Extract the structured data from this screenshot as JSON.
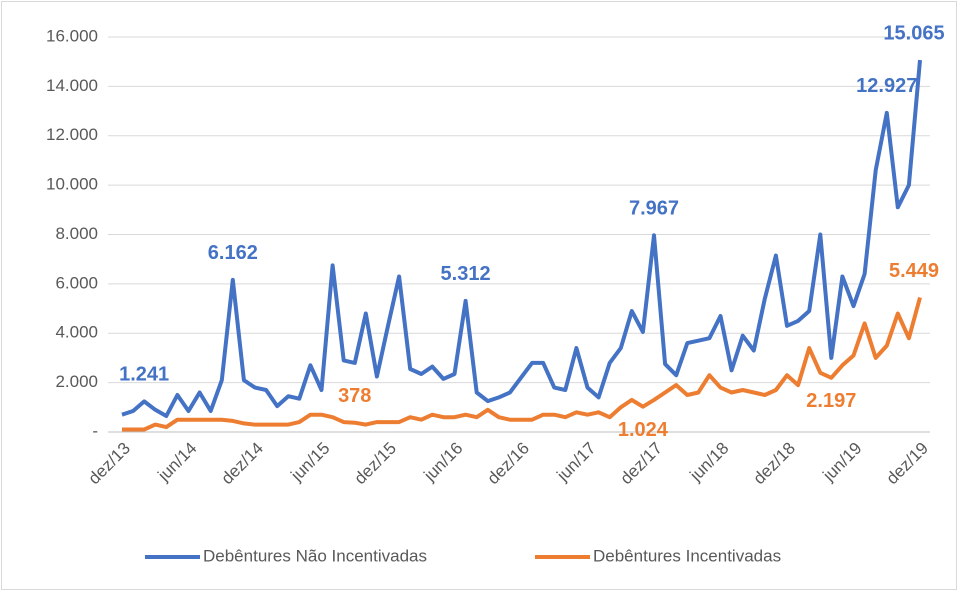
{
  "chart_data": {
    "type": "line",
    "categories": [
      "dez/13",
      null,
      null,
      null,
      null,
      null,
      "jun/14",
      null,
      null,
      null,
      null,
      null,
      "dez/14",
      null,
      null,
      null,
      null,
      null,
      "jun/15",
      null,
      null,
      null,
      null,
      null,
      "dez/15",
      null,
      null,
      null,
      null,
      null,
      "jun/16",
      null,
      null,
      null,
      null,
      null,
      "dez/16",
      null,
      null,
      null,
      null,
      null,
      "jun/17",
      null,
      null,
      null,
      null,
      null,
      "dez/17",
      null,
      null,
      null,
      null,
      null,
      "jun/18",
      null,
      null,
      null,
      null,
      null,
      "dez/18",
      null,
      null,
      null,
      null,
      null,
      "jun/19",
      null,
      null,
      null,
      null,
      null,
      "dez/19"
    ],
    "series": [
      {
        "name": "Debêntures Não Incentivadas",
        "color": "#4472c4",
        "values": [
          700,
          850,
          1241,
          900,
          650,
          1500,
          850,
          1600,
          850,
          2100,
          6162,
          2100,
          1800,
          1700,
          1050,
          1450,
          1350,
          2700,
          1700,
          6750,
          2900,
          2800,
          4800,
          2250,
          4300,
          6300,
          2550,
          2350,
          2650,
          2150,
          2350,
          5312,
          1600,
          1250,
          1400,
          1600,
          2200,
          2800,
          2800,
          1800,
          1700,
          3400,
          1800,
          1400,
          2800,
          3400,
          4900,
          4050,
          7967,
          2750,
          2300,
          3600,
          3700,
          3800,
          4700,
          2500,
          3900,
          3300,
          5400,
          7150,
          4300,
          4500,
          4900,
          8000,
          3000,
          6300,
          5100,
          6400,
          10600,
          12927,
          9100,
          10000,
          15065
        ],
        "value_labels": [
          null,
          null,
          "1.241",
          null,
          null,
          null,
          null,
          null,
          null,
          null,
          "6.162",
          null,
          null,
          null,
          null,
          null,
          null,
          null,
          null,
          null,
          null,
          null,
          null,
          null,
          null,
          null,
          null,
          null,
          null,
          null,
          null,
          "5.312",
          null,
          null,
          null,
          null,
          null,
          null,
          null,
          null,
          null,
          null,
          null,
          null,
          null,
          null,
          null,
          null,
          "7.967",
          null,
          null,
          null,
          null,
          null,
          null,
          null,
          null,
          null,
          null,
          null,
          null,
          null,
          null,
          null,
          null,
          null,
          null,
          null,
          null,
          "12.927",
          null,
          null,
          "15.065"
        ]
      },
      {
        "name": "Debêntures Incentivadas",
        "color": "#ed7d31",
        "values": [
          100,
          100,
          100,
          300,
          200,
          500,
          500,
          500,
          500,
          500,
          450,
          350,
          300,
          300,
          300,
          300,
          400,
          700,
          700,
          600,
          400,
          378,
          300,
          400,
          400,
          400,
          600,
          500,
          700,
          600,
          600,
          700,
          600,
          900,
          600,
          500,
          500,
          500,
          700,
          700,
          600,
          800,
          700,
          800,
          600,
          1000,
          1300,
          1024,
          1300,
          1600,
          1900,
          1500,
          1600,
          2300,
          1800,
          1600,
          1700,
          1600,
          1500,
          1700,
          2300,
          1900,
          3400,
          2400,
          2197,
          2700,
          3100,
          4400,
          3000,
          3500,
          4800,
          3800,
          5449
        ],
        "value_labels": [
          null,
          null,
          null,
          null,
          null,
          null,
          null,
          null,
          null,
          null,
          null,
          null,
          null,
          null,
          null,
          null,
          null,
          null,
          null,
          null,
          null,
          "378",
          null,
          null,
          null,
          null,
          null,
          null,
          null,
          null,
          null,
          null,
          null,
          null,
          null,
          null,
          null,
          null,
          null,
          null,
          null,
          null,
          null,
          null,
          null,
          null,
          null,
          "1.024",
          null,
          null,
          null,
          null,
          null,
          null,
          null,
          null,
          null,
          null,
          null,
          null,
          null,
          null,
          null,
          null,
          "2.197",
          null,
          null,
          null,
          null,
          null,
          null,
          null,
          "5.449"
        ]
      }
    ],
    "ylim": [
      0,
      16000
    ],
    "yticks": [
      {
        "value": 0,
        "label": "-"
      },
      {
        "value": 2000,
        "label": "2.000"
      },
      {
        "value": 4000,
        "label": "4.000"
      },
      {
        "value": 6000,
        "label": "6.000"
      },
      {
        "value": 8000,
        "label": "8.000"
      },
      {
        "value": 10000,
        "label": "10.000"
      },
      {
        "value": 12000,
        "label": "12.000"
      },
      {
        "value": 14000,
        "label": "14.000"
      },
      {
        "value": 16000,
        "label": "16.000"
      }
    ],
    "grid": true,
    "legend": "bottom"
  }
}
